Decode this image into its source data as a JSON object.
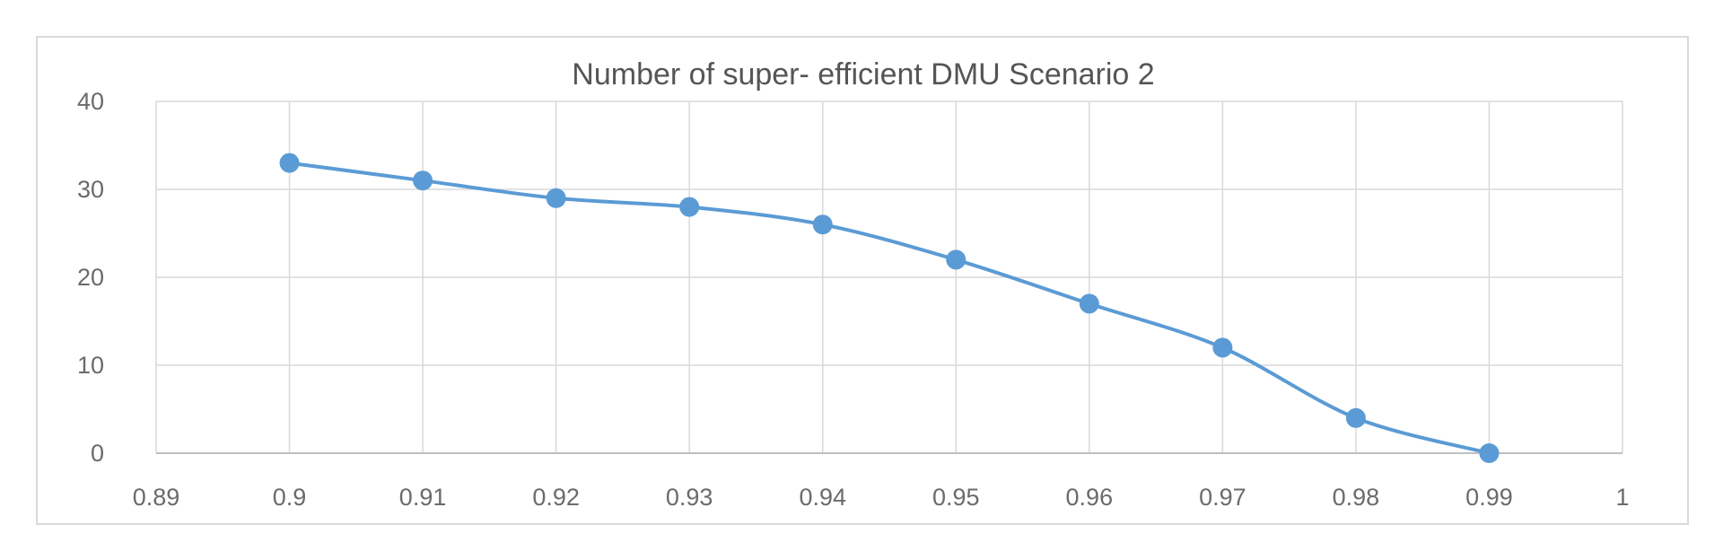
{
  "chart_data": {
    "type": "scatter",
    "title": "Number of super- efficient DMU Scenario 2",
    "xlabel": "",
    "ylabel": "",
    "xlim": [
      0.89,
      1
    ],
    "ylim": [
      0,
      40
    ],
    "x_ticks": [
      "0.89",
      "0.9",
      "0.91",
      "0.92",
      "0.93",
      "0.94",
      "0.95",
      "0.96",
      "0.97",
      "0.98",
      "0.99",
      "1"
    ],
    "y_ticks": [
      "0",
      "10",
      "20",
      "30",
      "40"
    ],
    "grid": "on",
    "legend": "none",
    "line": "smoothed",
    "series": [
      {
        "color": "#5b9bd5",
        "x": [
          0.9,
          0.91,
          0.92,
          0.93,
          0.94,
          0.95,
          0.96,
          0.97,
          0.98,
          0.99
        ],
        "y": [
          33,
          31,
          29,
          28,
          26,
          22,
          17,
          12,
          4,
          0
        ]
      }
    ]
  }
}
